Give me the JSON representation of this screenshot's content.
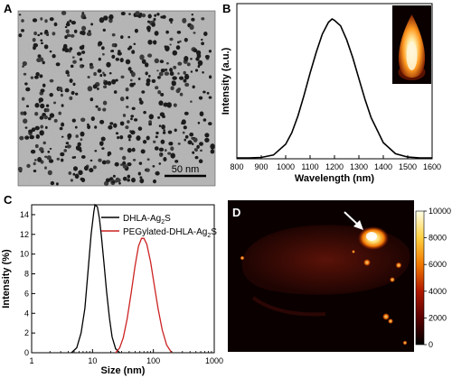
{
  "panels": {
    "A": {
      "letter": "A",
      "scale_bar_label": "50 nm"
    },
    "B": {
      "letter": "B"
    },
    "C": {
      "letter": "C"
    },
    "D": {
      "letter": "D",
      "colorbar": {
        "ticks": [
          "10000",
          "8000",
          "6000",
          "4000",
          "2000",
          "0"
        ],
        "colors": [
          "#000000",
          "#5a0000",
          "#b01800",
          "#f07800",
          "#ffd040",
          "#ffffe8"
        ]
      }
    }
  },
  "chart_data": [
    {
      "panel": "B",
      "type": "line",
      "title": "",
      "xlabel": "Wavelength (nm)",
      "ylabel": "Intensity (a.u.)",
      "xlim": [
        800,
        1600
      ],
      "x_ticks": [
        "800",
        "900",
        "1000",
        "1100",
        "1200",
        "1300",
        "1400",
        "1500",
        "1600"
      ],
      "y_ticks": [],
      "grid": false,
      "series": [
        {
          "color": "#000000",
          "x": [
            800,
            850,
            900,
            950,
            1000,
            1025,
            1050,
            1075,
            1100,
            1125,
            1150,
            1175,
            1190,
            1200,
            1225,
            1250,
            1275,
            1300,
            1325,
            1350,
            1400,
            1450,
            1500,
            1550,
            1600
          ],
          "y": [
            0,
            0,
            0.003,
            0.021,
            0.098,
            0.181,
            0.3,
            0.45,
            0.61,
            0.76,
            0.89,
            0.975,
            1.0,
            0.99,
            0.95,
            0.85,
            0.72,
            0.57,
            0.42,
            0.29,
            0.11,
            0.03,
            0.006,
            0,
            0
          ]
        }
      ]
    },
    {
      "panel": "C",
      "type": "line",
      "title": "",
      "xlabel": "Size (nm)",
      "ylabel": "Intensity (%)",
      "x_scale": "log",
      "xlim": [
        1,
        1000
      ],
      "ylim": [
        0,
        15
      ],
      "x_ticks": [
        "1",
        "10",
        "100",
        "1000"
      ],
      "y_ticks": [
        "0",
        "2",
        "4",
        "6",
        "8",
        "10",
        "12",
        "14"
      ],
      "legend_position": "top-right",
      "grid": false,
      "series": [
        {
          "name": "DHLA-Ag2S",
          "name_main": "DHLA-Ag",
          "name_sub": "2",
          "name_tail": "S",
          "color": "#000000",
          "x": [
            4.5,
            5.5,
            6.5,
            7.5,
            8.5,
            9.5,
            10.5,
            11,
            12,
            13,
            14,
            15.5,
            17,
            19,
            21,
            24,
            28
          ],
          "y": [
            0,
            0.5,
            2.0,
            4.5,
            8.5,
            12.0,
            14.3,
            15.0,
            14.8,
            13.6,
            11.8,
            9.0,
            6.2,
            3.5,
            1.6,
            0.4,
            0
          ]
        },
        {
          "name": "PEGylated-DHLA-Ag2S",
          "name_main": "PEGylated-DHLA-Ag",
          "name_sub": "2",
          "name_tail": "S",
          "color": "#cc2222",
          "x": [
            24,
            28,
            32,
            37,
            43,
            50,
            57,
            64,
            70,
            78,
            90,
            105,
            120,
            140,
            165,
            200
          ],
          "y": [
            0,
            0.5,
            1.5,
            3.4,
            6.0,
            8.8,
            10.8,
            11.6,
            11.6,
            11.0,
            9.2,
            6.6,
            4.4,
            2.3,
            0.8,
            0
          ]
        }
      ]
    }
  ]
}
